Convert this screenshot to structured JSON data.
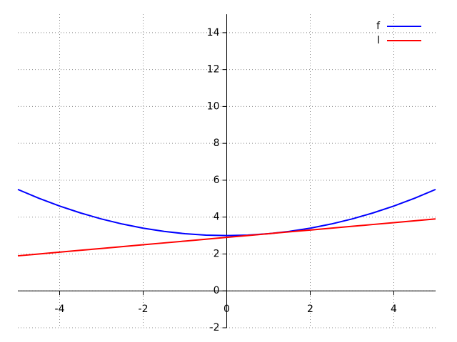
{
  "chart_data": {
    "type": "line",
    "x": [
      -5,
      -4.5,
      -4,
      -3.5,
      -3,
      -2.5,
      -2,
      -1.5,
      -1,
      -0.5,
      0,
      0.5,
      1,
      1.5,
      2,
      2.5,
      3,
      3.5,
      4,
      4.5,
      5
    ],
    "series": [
      {
        "name": "f",
        "color": "#0000ff",
        "values": [
          5.5,
          5.025,
          4.6,
          4.225,
          3.9,
          3.625,
          3.4,
          3.225,
          3.1,
          3.025,
          3,
          3.025,
          3.1,
          3.225,
          3.4,
          3.625,
          3.9,
          4.225,
          4.6,
          5.025,
          5.5
        ]
      },
      {
        "name": "l",
        "color": "#ff0000",
        "values": [
          1.9,
          2.0,
          2.1,
          2.2,
          2.3,
          2.4,
          2.5,
          2.6,
          2.7,
          2.8,
          2.9,
          3.0,
          3.1,
          3.2,
          3.3,
          3.4,
          3.5,
          3.6,
          3.7,
          3.8,
          3.9
        ]
      }
    ],
    "xlim": [
      -5,
      5
    ],
    "ylim": [
      -2,
      15
    ],
    "xticks": [
      -4,
      -2,
      0,
      2,
      4
    ],
    "yticks": [
      -2,
      0,
      2,
      4,
      6,
      8,
      10,
      12,
      14
    ],
    "grid": true,
    "legend": "upper right"
  }
}
